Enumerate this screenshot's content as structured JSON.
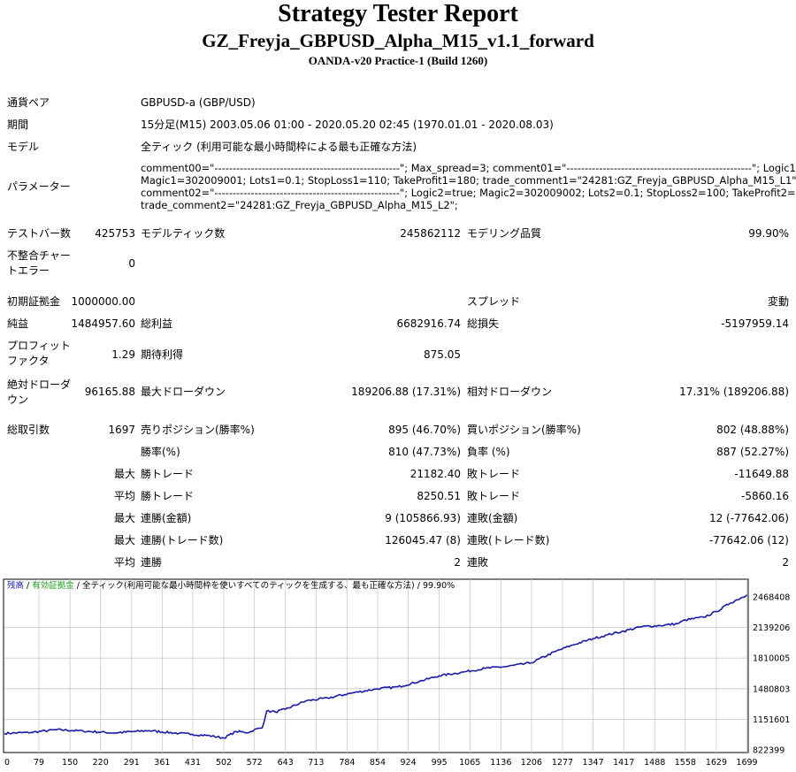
{
  "header": {
    "title": "Strategy Tester Report",
    "subtitle": "GZ_Freyja_GBPUSD_Alpha_M15_v1.1_forward",
    "server": "OANDA-v20 Practice-1 (Build 1260)"
  },
  "settings": {
    "symbol_label": "通貨ペア",
    "symbol_value": "GBPUSD-a (GBP/USD)",
    "period_label": "期間",
    "period_value": "15分足(M15) 2003.05.06 01:00 - 2020.05.20 02:45 (1970.01.01 - 2020.08.03)",
    "model_label": "モデル",
    "model_value": "全ティック (利用可能な最小時間枠による最も正確な方法)",
    "params_label": "パラメーター",
    "params_lines": [
      "comment00=\"---------------------------------------------------\"; Max_spread=3; comment01=\"---------------------------------------------------\"; Logic1=true;",
      "Magic1=302009001; Lots1=0.1; StopLoss1=110; TakeProfit1=180; trade_comment1=\"24281:GZ_Freyja_GBPUSD_Alpha_M15_L1\";",
      "comment02=\"---------------------------------------------------\"; Logic2=true; Magic2=302009002; Lots2=0.1; StopLoss2=100; TakeProfit2=200;",
      "trade_comment2=\"24281:GZ_Freyja_GBPUSD_Alpha_M15_L2\";"
    ]
  },
  "stats": {
    "bars_label": "テストバー数",
    "bars_value": "425753",
    "ticks_label": "モデルティック数",
    "ticks_value": "245862112",
    "quality_label": "モデリング品質",
    "quality_value": "99.90%",
    "mismatch_label_1": "不整合チャー",
    "mismatch_label_2": "トエラー",
    "mismatch_value": "0",
    "deposit_label": "初期証拠金",
    "deposit_value": "1000000.00",
    "spread_label": "スプレッド",
    "spread_value": "変動",
    "net_label": "純益",
    "net_value": "1484957.60",
    "gross_profit_label": "総利益",
    "gross_profit_value": "6682916.74",
    "gross_loss_label": "総損失",
    "gross_loss_value": "-5197959.14",
    "pf_label_1": "プロフィット",
    "pf_label_2": "ファクタ",
    "pf_value": "1.29",
    "expected_label": "期待利得",
    "expected_value": "875.05",
    "abs_dd_label_1": "絶対ドローダ",
    "abs_dd_label_2": "ウン",
    "abs_dd_value": "96165.88",
    "max_dd_label": "最大ドローダウン",
    "max_dd_value": "189206.88 (17.31%)",
    "rel_dd_label": "相対ドローダウン",
    "rel_dd_value": "17.31% (189206.88)",
    "trades_label": "総取引数",
    "trades_value": "1697",
    "short_label": "売りポジション(勝率%)",
    "short_value": "895 (46.70%)",
    "long_label": "買いポジション(勝率%)",
    "long_value": "802 (48.88%)",
    "win_label": "勝率(%)",
    "win_value": "810 (47.73%)",
    "loss_label": "負率 (%)",
    "loss_value": "887 (52.27%)",
    "max_prefix": "最大",
    "avg_prefix": "平均",
    "max_win_label": "勝トレード",
    "max_win_value": "21182.40",
    "max_loss_label": "敗トレード",
    "max_loss_value": "-11649.88",
    "avg_win_label": "勝トレード",
    "avg_win_value": "8250.51",
    "avg_loss_label": "敗トレード",
    "avg_loss_value": "-5860.16",
    "max_cons_win_label": "連勝(金額)",
    "max_cons_win_value": "9 (105866.93)",
    "max_cons_loss_label": "連敗(金額)",
    "max_cons_loss_value": "12 (-77642.06)",
    "max_cons_profit_label": "連勝(トレード数)",
    "max_cons_profit_value": "126045.47 (8)",
    "max_cons_lossamt_label": "連敗(トレード数)",
    "max_cons_lossamt_value": "-77642.06 (12)",
    "avg_cons_win_label": "連勝",
    "avg_cons_win_value": "2",
    "avg_cons_loss_label": "連敗",
    "avg_cons_loss_value": "2"
  },
  "colors": {
    "balance_line": "#1a1aa6",
    "legend_balance": "#1a1aa6",
    "legend_equity": "#1a9e1a"
  },
  "chart_data": {
    "type": "line",
    "legend_balance": "残高",
    "legend_sep": " / ",
    "legend_equity": "有効証拠金",
    "legend_rest": " / 全ティック(利用可能な最小時間枠を使いすべてのティックを生成する、最も正確な方法) / 99.90%",
    "x_ticks": [
      "0",
      "79",
      "150",
      "220",
      "291",
      "361",
      "431",
      "502",
      "572",
      "643",
      "713",
      "784",
      "854",
      "924",
      "995",
      "1065",
      "1136",
      "1206",
      "1277",
      "1347",
      "1417",
      "1488",
      "1558",
      "1629",
      "1699"
    ],
    "y_ticks": [
      "2468408",
      "2139206",
      "1810005",
      "1480803",
      "1151601",
      "822399"
    ],
    "xlim": [
      0,
      1700
    ],
    "ylim": [
      822399,
      2468408
    ],
    "series": [
      {
        "x": [
          0,
          60,
          120,
          180,
          250,
          330,
          400,
          430,
          470,
          502,
          530,
          560,
          572,
          590,
          600,
          620,
          643,
          690,
          740,
          790,
          854,
          900,
          950,
          995,
          1050,
          1100,
          1150,
          1206,
          1260,
          1300,
          1347,
          1380,
          1417,
          1460,
          1500,
          1540,
          1558,
          1600,
          1629,
          1660,
          1699
        ],
        "y": [
          1000000,
          1010000,
          1040000,
          1025000,
          1005000,
          1030000,
          1000000,
          990000,
          975000,
          950000,
          1020000,
          1010000,
          1040000,
          1060000,
          1240000,
          1230000,
          1260000,
          1350000,
          1380000,
          1430000,
          1480000,
          1500000,
          1560000,
          1620000,
          1660000,
          1700000,
          1720000,
          1760000,
          1880000,
          1950000,
          2020000,
          2060000,
          2100000,
          2150000,
          2160000,
          2180000,
          2220000,
          2250000,
          2310000,
          2400000,
          2490000
        ]
      }
    ]
  }
}
